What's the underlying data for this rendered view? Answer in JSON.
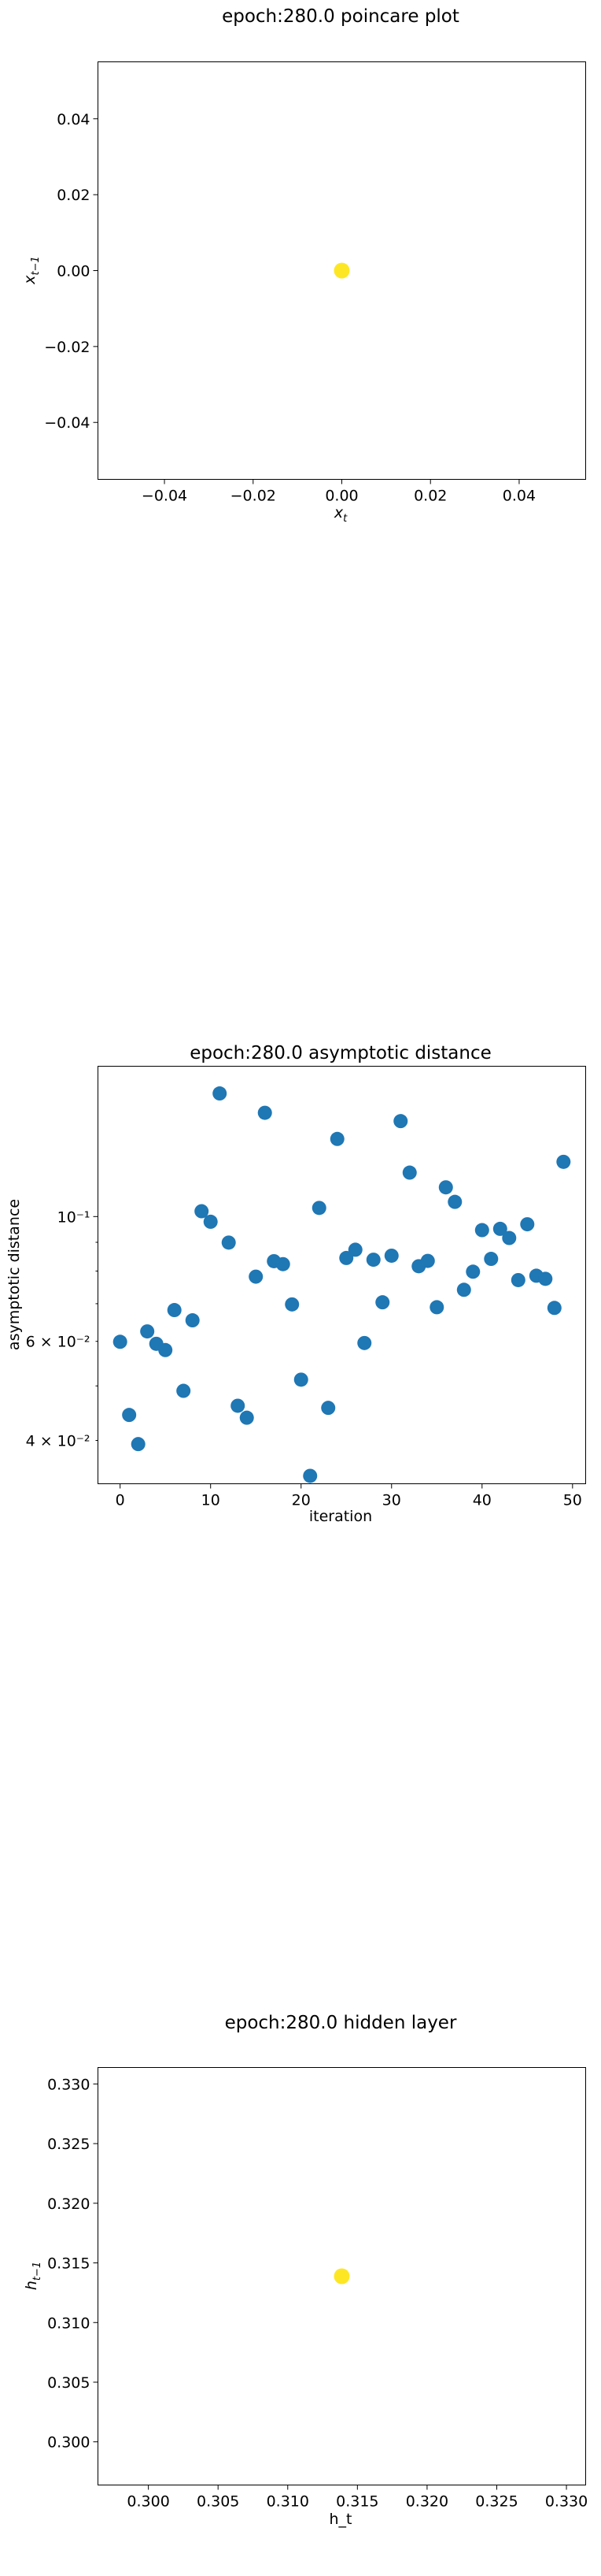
{
  "chart_data": [
    {
      "type": "scatter",
      "title": "epoch:280.0 poincare plot",
      "xlabel": "x_t",
      "ylabel": "x_{t−1}",
      "xlim": [
        -0.055,
        0.055
      ],
      "ylim": [
        -0.055,
        0.055
      ],
      "xticks": [
        -0.04,
        -0.02,
        0.0,
        0.02,
        0.04
      ],
      "xtick_labels": [
        "−0.04",
        "−0.02",
        "0.00",
        "0.02",
        "0.04"
      ],
      "yticks": [
        -0.04,
        -0.02,
        0.0,
        0.02,
        0.04
      ],
      "ytick_labels": [
        "−0.04",
        "−0.02",
        "0.00",
        "0.02",
        "0.04"
      ],
      "grid": false,
      "points": [
        {
          "x": 0.0,
          "y": 0.0
        }
      ],
      "point_color": "#fde725"
    },
    {
      "type": "scatter",
      "title": "epoch:280.0 asymptotic distance",
      "xlabel": "iteration",
      "ylabel": "asymptotic distance",
      "yscale": "log",
      "xlim": [
        -2.45,
        51.45
      ],
      "ylim": [
        0.0335,
        0.185
      ],
      "xticks": [
        0,
        10,
        20,
        30,
        40,
        50
      ],
      "xtick_labels": [
        "0",
        "10",
        "20",
        "30",
        "40",
        "50"
      ],
      "yticks_major": [
        0.1
      ],
      "yticks_minor": [
        0.04,
        0.06
      ],
      "ytick_labels": [
        "10⁻¹",
        "6 × 10⁻²",
        "4 × 10⁻²"
      ],
      "grid": false,
      "point_color": "#1f77b4",
      "x": [
        0,
        1,
        2,
        3,
        4,
        5,
        6,
        7,
        8,
        9,
        10,
        11,
        12,
        13,
        14,
        15,
        16,
        17,
        18,
        19,
        20,
        21,
        22,
        23,
        24,
        25,
        26,
        27,
        28,
        29,
        30,
        31,
        32,
        33,
        34,
        35,
        36,
        37,
        38,
        39,
        40,
        41,
        42,
        43,
        44,
        45,
        46,
        47,
        48,
        49
      ],
      "y": [
        0.0599,
        0.0444,
        0.0394,
        0.0625,
        0.0594,
        0.0579,
        0.0682,
        0.049,
        0.0654,
        0.1022,
        0.0979,
        0.1655,
        0.0899,
        0.0461,
        0.0439,
        0.0782,
        0.1529,
        0.0833,
        0.0823,
        0.0698,
        0.0513,
        0.0346,
        0.1036,
        0.0457,
        0.1374,
        0.0844,
        0.0873,
        0.0596,
        0.0838,
        0.0704,
        0.0852,
        0.1478,
        0.1197,
        0.0816,
        0.0834,
        0.069,
        0.1127,
        0.1062,
        0.0741,
        0.0798,
        0.0946,
        0.0841,
        0.0951,
        0.0916,
        0.0771,
        0.0969,
        0.0785,
        0.0775,
        0.0688,
        0.1251
      ]
    },
    {
      "type": "scatter",
      "title": "epoch:280.0 hidden layer",
      "xlabel": "h_t",
      "ylabel": "h_{t−1}",
      "xlim": [
        0.29638,
        0.33138
      ],
      "ylim": [
        0.29638,
        0.33138
      ],
      "xticks": [
        0.3,
        0.305,
        0.31,
        0.315,
        0.32,
        0.325,
        0.33
      ],
      "xtick_labels": [
        "0.300",
        "0.305",
        "0.310",
        "0.315",
        "0.320",
        "0.325",
        "0.330"
      ],
      "yticks": [
        0.3,
        0.305,
        0.31,
        0.315,
        0.32,
        0.325,
        0.33
      ],
      "ytick_labels": [
        "0.300",
        "0.305",
        "0.310",
        "0.315",
        "0.320",
        "0.325",
        "0.330"
      ],
      "grid": false,
      "points": [
        {
          "x": 0.31388,
          "y": 0.31388
        }
      ],
      "point_color": "#fde725"
    }
  ]
}
